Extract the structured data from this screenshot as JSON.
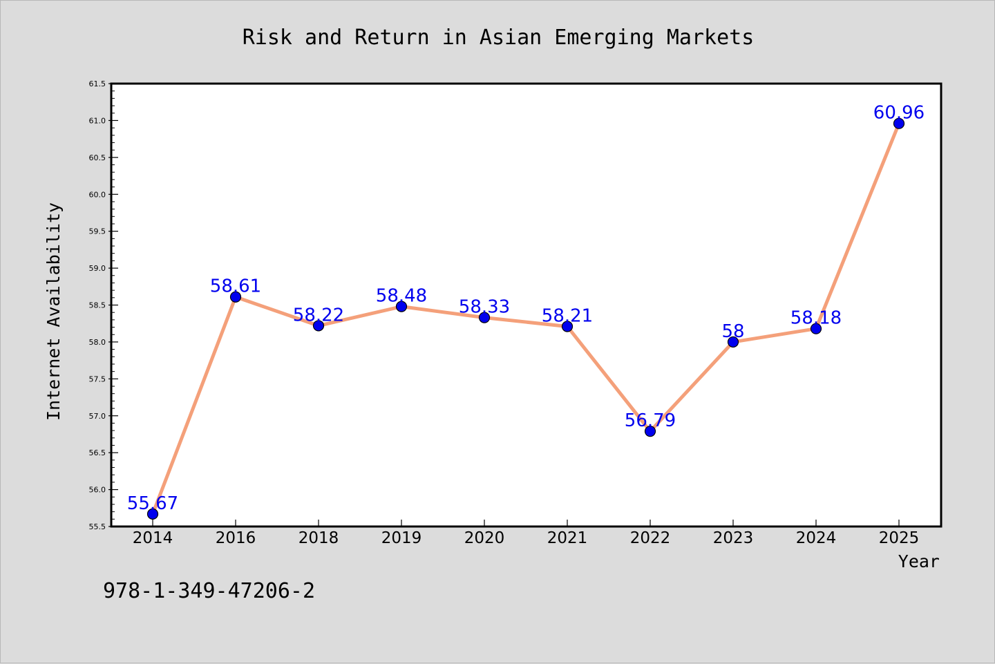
{
  "chart_data": {
    "type": "line",
    "title": "Risk and Return in Asian Emerging Markets",
    "xlabel": "Year",
    "ylabel": "Internet Availability",
    "categories": [
      "2014",
      "2016",
      "2018",
      "2019",
      "2020",
      "2021",
      "2022",
      "2023",
      "2024",
      "2025"
    ],
    "series": [
      {
        "values": [
          55.67,
          58.61,
          58.22,
          58.48,
          58.33,
          58.21,
          56.79,
          58,
          58.18,
          60.96
        ],
        "data_labels": [
          "55.67",
          "58.61",
          "58.22",
          "58.48",
          "58.33",
          "58.21",
          "56.79",
          "58",
          "58.18",
          "60.96"
        ],
        "line_color": "#f4a07a",
        "marker_color": "#0000ee"
      }
    ],
    "ylim": [
      55.5,
      61.5
    ],
    "yticks": [
      "55.5",
      "56.0",
      "56.5",
      "57.0",
      "57.5",
      "58.0",
      "58.5",
      "59.0",
      "59.5",
      "60.0",
      "60.5",
      "61.0",
      "61.5"
    ],
    "grid": false,
    "legend": "none"
  },
  "annotation": {
    "isbn": "978-1-349-47206-2"
  },
  "colors": {
    "background": "#dcdcdc",
    "plot_background": "#ffffff",
    "line": "#f4a07a",
    "marker": "#0000ee",
    "data_label": "#0000ee"
  }
}
